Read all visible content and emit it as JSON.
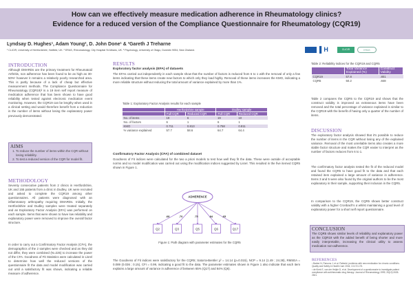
{
  "header": {
    "title_line1": "How can we effectively measure medication adherence in Rheumatology clinics?",
    "title_line2": "Evidence for a reduced version of the Compliance Questionnaire for Rheumatology (CQR19)",
    "authors": "Lyndsay D. Hughes¹, Adam Young², D. John Done¹ & ³Gareth J Treharne",
    "affiliations": "¹ CLiCIR, University of Hertfordshire, Hatfield, UK. ² ERAS, Rheumatology, City Hospital St Albans, UK. ³ Psychology, University of Otago, Dunedin 9054, New Zealand.",
    "logos": [
      "University of Hertfordshire",
      "UH",
      "CLiCIR",
      "ERAS"
    ]
  },
  "introduction": {
    "heading": "INTRODUCTION",
    "text": "Although DMARDs are the primary treatment for Rheumatoid Arthritis, non adherence has been found to be as high as 30-50%¹ however it remains a relatively poorly researched area. This is partly because of a lack of cheap but effective measurement methods. The Compliance Questionnaire for Rheumatology (CQR19)² is a 19 item self report measure of medication adherence that has been shown to have good reliability when tested against electronic medication event monitoring. However, the CQR19 can be lengthy when used in a clinical setting and would therefore benefit from a reduction in the number of items without losing the explanatory power previously demonstrated."
  },
  "aims": {
    "heading": "AIMS",
    "items": [
      "To reduce the number of items within the CQR without losing reliability.",
      "To test a reduced version of the CQR for model fit."
    ]
  },
  "methodology": {
    "heading": "METHODOLOGY",
    "p1": "Seventy consecutive patients from 2 clinics in Hertfordshire, UK and 155 patients from a clinic in Dudley, UK were recruited and asked to complete the CQR19 among other questionnaires. All patients were diagnosed with an inflammatory arthropathy requiring DMARDs. Initially, the Hertfordshire and Dudley samples were treated separately and an Exploratory Factor Analysis (EFA) was performed on each sample. Items that were shown to have low reliability and explanatory power were removed to improve the overall factor structure.",
    "p2": "In order to carry out a Confirmatory Factor Analysis (CFA), the demographics of the 2 samples were checked and as they did not differ, they were combined (N=225) to increase the power of the CFA. Goodness of Fit Statistics were calculated in Lisrel to determine how well the reduced versions of the questionnaire fit the data and model modification was carried out until a satisfactory fit was shown, indicating a reliable measure of adherence."
  },
  "results": {
    "heading": "RESULTS",
    "efa_title": "Exploratory factor analysis (EFA) of datasets",
    "efa_text": "The EFAs carried out independently in each sample show that the number of factors is reduced from 6 to 1 with the removal of only a few items indicating that these items create new factors to which only they load highly. Removal of these items increases the KMO, indicating a more reliable structure without reducing the total amount of variance explained by more than 1%.",
    "table1": {
      "caption": "Table 1: Exploratory Factor Analysis results for each sample",
      "groups": [
        "Hertfordshire sample",
        "Dudley sample"
      ],
      "subheaders": [
        "Full CQR",
        "Reduced CQR",
        "Full CQR",
        "Reduced CQR"
      ],
      "rows": [
        [
          "No. of items",
          "19",
          "6",
          "19",
          "10"
        ],
        [
          "No. of factors",
          "6",
          "1",
          "6",
          "1"
        ],
        [
          "KMO",
          "0.711",
          "0.813",
          "0.758",
          "0.811"
        ],
        [
          "% variance explained",
          "57.7",
          "58.6",
          "64.7",
          "64.4"
        ]
      ]
    },
    "cfa_title": "Confirmatory Factor Analysis (CFA) of combined dataset",
    "cfa_text": "Goodness of Fit indices were calculated for the two a priori models to test how well they fit the data. These were outside of acceptable norms and so model modification was carried out using the modification indices suggested by Lisrel. This resulted in the five itemed CQR5 shown in Figure 1.",
    "figure": {
      "latent": "ADHERENCE",
      "items": [
        {
          "label": "Q2",
          "loading": ".68"
        },
        {
          "label": "Q3",
          "loading": ".70"
        },
        {
          "label": "Q5",
          "loading": ".75"
        },
        {
          "label": "Q6",
          "loading": ".84"
        },
        {
          "label": "Q17",
          "loading": ".65"
        }
      ],
      "caption": "Figure 1: Path diagram with parameter estimates for the CQR5",
      "color": "#9b6fcf"
    },
    "fit_text": "The Goodness of Fit indices were satisfactory for the CQR5; Satorra-Bentler χ² = 14.14 (p=0.015), NCP = 9.14 (1.49 ; 24.38), RMSEA = 0.089 (0.036 ; 0.15), CFI = 0.99, indicating a good fit to the data. The parameter estimates shown in Figure 1 also indicate that each item explains a large amount of variance in adherence of between 65% (Q17) and 84% (Q6)."
  },
  "table2": {
    "caption": "Table 2: Reliability indices for the CQR19 and CQR5",
    "headers": [
      "",
      "Total Variance Explained (%)",
      "Construct Validity"
    ],
    "rows": [
      [
        "CQR19",
        "57.8",
        ".801"
      ],
      [
        "CQR5",
        "50.2",
        ".848"
      ]
    ],
    "text": "Table 2 compares the CQR5 to the CQR19 and shows that the construct validity is improved as extraneous items have been removed and the total percentage of variance explained is similar to the CQR19 with the benefit of having only a quarter of the number of items."
  },
  "discussion": {
    "heading": "DISCUSSION",
    "p1": "The exploratory factor analysis showed that it's possible to reduce the number of items in the CQR without losing any of the explained variance. Removal of the most unreliable items also creates a more stable factor structure and makes the CQR easier to interpret as the number of factors reduces from 6 to 1.",
    "p2": "The confirmatory factor analysis tested the fit of the reduced model and found the CQR5 to have good fit to the data and that each retained item explained a large amount of variance in adherence. Items 3 and 5 were also found by the original authors to be the most explanatory in their sample, supporting their inclusion in the CQR5.",
    "p3": "In comparison to the CQR19, the CQR5 shows better construct validity with a higher Cronbach's α whilst maintaining a good level of explanatory power for a short self report questionnaire."
  },
  "conclusion": {
    "heading": "CONCLUSION",
    "text": "The CQR5 shows similar levels of reliability and explanatory power as the CQR19 with the added benefit of being shorter and more easily interpretable, increasing the clinical utility to assess medication non-adherence."
  },
  "references": {
    "heading": "REFERENCES",
    "items": [
      "¹ Barber N, Parsons J, et al. Patients' problems with new medication for chronic conditions. Quality and Safety in Health Care 2004; 13:172-175.",
      "² de Klerk E, van der Heijde D, et al. Development of a questionnaire to investigate patient compliance with antirheumatic drug therapy. Journal of Rheumatology 1999; 26(12):2635-2641."
    ]
  },
  "colors": {
    "title_band": "#cfc4dc",
    "heading": "#7b52b0",
    "table_header": "#8a64b3",
    "box": "#d6cbe4"
  }
}
